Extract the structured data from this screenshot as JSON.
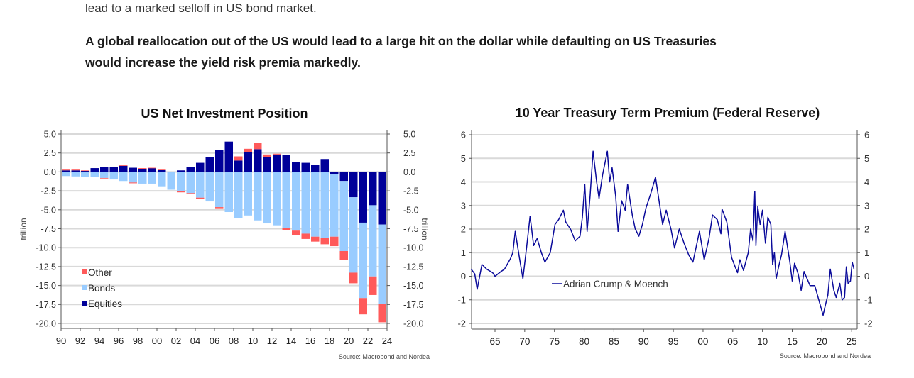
{
  "article": {
    "clipped_line": "lead to a marked selloff in US bond market.",
    "paragraph_lines": [
      "A global reallocation out of the US would lead to a large hit on the dollar while defaulting on US Treasuries",
      "would increase the yield risk premia markedly."
    ]
  },
  "chart_data": [
    {
      "type": "bar",
      "stacked": true,
      "title": "US Net Investment Position",
      "ylabel": "trillion",
      "ylabel_right": "trillion",
      "ylim": [
        -20,
        5
      ],
      "yticks": [
        "5.0",
        "2.5",
        "0.0",
        "-2.5",
        "-5.0",
        "-7.5",
        "-10.0",
        "-12.5",
        "-15.0",
        "-17.5",
        "-20.0"
      ],
      "xtick_labels": [
        "90",
        "92",
        "94",
        "96",
        "98",
        "00",
        "02",
        "04",
        "06",
        "08",
        "10",
        "12",
        "14",
        "16",
        "18",
        "20",
        "22",
        "24"
      ],
      "grid": true,
      "legend_position": "bottom-left",
      "source": "Source: Macrobond and Nordea",
      "categories": [
        1990,
        1991,
        1992,
        1993,
        1994,
        1995,
        1996,
        1997,
        1998,
        1999,
        2000,
        2001,
        2002,
        2003,
        2004,
        2005,
        2006,
        2007,
        2008,
        2009,
        2010,
        2011,
        2012,
        2013,
        2014,
        2015,
        2016,
        2017,
        2018,
        2019,
        2020,
        2021,
        2022,
        2023
      ],
      "series": [
        {
          "name": "Equities",
          "color": "#000099",
          "values": [
            0.2,
            0.2,
            0.15,
            0.5,
            0.6,
            0.6,
            0.8,
            0.55,
            0.4,
            0.5,
            0.25,
            0,
            0.2,
            0.6,
            1.2,
            1.95,
            2.9,
            4.0,
            1.5,
            2.6,
            3.0,
            2.0,
            2.3,
            2.2,
            1.3,
            1.2,
            0.9,
            1.7,
            -0.25,
            -1.2,
            -3.35,
            -6.7,
            -4.4,
            -6.95
          ]
        },
        {
          "name": "Bonds",
          "color": "#99ccff",
          "values": [
            -0.55,
            -0.6,
            -0.7,
            -0.7,
            -0.8,
            -1.0,
            -1.2,
            -1.4,
            -1.55,
            -1.55,
            -1.9,
            -2.35,
            -2.55,
            -2.8,
            -3.4,
            -3.9,
            -4.65,
            -5.3,
            -6.1,
            -5.75,
            -6.4,
            -6.8,
            -7.05,
            -7.4,
            -7.75,
            -8.15,
            -8.55,
            -8.7,
            -8.3,
            -9.25,
            -9.95,
            -9.95,
            -9.4,
            -10.5
          ]
        },
        {
          "name": "Other",
          "color": "#ff5a5a",
          "values": [
            0.1,
            0.1,
            0.05,
            0,
            -0.05,
            0,
            0.1,
            -0.1,
            0.1,
            0.05,
            0.05,
            0,
            -0.15,
            -0.15,
            -0.2,
            0,
            -0.15,
            0,
            0.55,
            0.45,
            0.8,
            0.3,
            0.1,
            -0.3,
            -0.55,
            -0.7,
            -0.65,
            -0.85,
            -1.25,
            -1.2,
            -1.4,
            -2.15,
            -2.45,
            -2.4
          ]
        }
      ],
      "legend_order": [
        "Other",
        "Bonds",
        "Equities"
      ]
    },
    {
      "type": "line",
      "title": "10 Year Treasury Term Premium (Federal Reserve)",
      "ylim": [
        -2,
        6
      ],
      "yticks": [
        "6",
        "5",
        "4",
        "3",
        "2",
        "1",
        "0",
        "-1",
        "-2"
      ],
      "xtick_labels": [
        "65",
        "70",
        "75",
        "80",
        "85",
        "90",
        "95",
        "00",
        "05",
        "10",
        "15",
        "20",
        "25"
      ],
      "grid": true,
      "legend_position": "center",
      "source": "Source: Macrobond and Nordea",
      "series": [
        {
          "name": "Adrian Crump & Moench",
          "color": "#0a0a9a",
          "x": [
            1961.0,
            1961.6,
            1962.0,
            1962.8,
            1963.6,
            1964.6,
            1965.0,
            1966.0,
            1966.6,
            1967.6,
            1968.0,
            1968.4,
            1969.1,
            1969.7,
            1970.3,
            1970.9,
            1971.5,
            1972.1,
            1972.8,
            1973.4,
            1974.3,
            1975.1,
            1975.7,
            1976.5,
            1976.9,
            1977.7,
            1978.5,
            1979.3,
            1979.7,
            1980.1,
            1980.5,
            1981.0,
            1981.5,
            1982.1,
            1982.5,
            1983.1,
            1983.9,
            1984.3,
            1984.7,
            1985.3,
            1985.7,
            1986.3,
            1986.9,
            1987.3,
            1988.1,
            1988.6,
            1989.2,
            1989.8,
            1990.4,
            1991.2,
            1992.0,
            1992.6,
            1993.2,
            1993.8,
            1994.6,
            1995.2,
            1996.0,
            1996.8,
            1997.6,
            1998.3,
            1999.4,
            2000.2,
            2001.0,
            2001.6,
            2002.4,
            2003.0,
            2003.2,
            2004.0,
            2004.8,
            2005.4,
            2005.8,
            2006.2,
            2006.8,
            2007.6,
            2008.0,
            2008.4,
            2008.7,
            2008.9,
            2009.2,
            2009.6,
            2010.0,
            2010.5,
            2010.9,
            2011.4,
            2011.7,
            2012.0,
            2012.3,
            2012.8,
            2013.2,
            2013.8,
            2014.6,
            2015.0,
            2015.4,
            2016.0,
            2016.5,
            2017.0,
            2018.0,
            2018.8,
            2019.8,
            2020.2,
            2020.6,
            2021.0,
            2021.4,
            2022.0,
            2022.4,
            2023.0,
            2023.4,
            2023.8,
            2024.1,
            2024.4,
            2024.8,
            2025.1,
            2025.4
          ],
          "y": [
            0.3,
            0.1,
            -0.55,
            0.5,
            0.3,
            0.15,
            0.0,
            0.2,
            0.3,
            0.75,
            1.0,
            1.9,
            0.8,
            -0.1,
            1.2,
            2.55,
            1.3,
            1.6,
            1.0,
            0.6,
            1.0,
            2.2,
            2.4,
            2.8,
            2.3,
            2.0,
            1.5,
            1.7,
            2.5,
            3.9,
            1.9,
            3.4,
            5.3,
            4.0,
            3.3,
            4.3,
            5.3,
            4.0,
            4.6,
            3.4,
            1.9,
            3.2,
            2.8,
            3.9,
            2.6,
            2.0,
            1.7,
            2.2,
            2.9,
            3.5,
            4.2,
            3.2,
            2.2,
            2.8,
            2.0,
            1.2,
            2.0,
            1.4,
            0.9,
            0.6,
            1.9,
            0.7,
            1.6,
            2.6,
            2.4,
            1.8,
            2.85,
            2.3,
            0.8,
            0.4,
            0.15,
            0.7,
            0.25,
            1.0,
            2.0,
            1.5,
            3.6,
            1.3,
            2.95,
            2.2,
            2.8,
            1.4,
            2.5,
            2.2,
            0.5,
            1.0,
            -0.1,
            0.5,
            0.9,
            1.9,
            0.6,
            -0.2,
            0.55,
            0.1,
            -0.6,
            0.2,
            -0.4,
            -0.4,
            -1.3,
            -1.65,
            -1.2,
            -0.8,
            0.3,
            -0.6,
            -0.9,
            -0.3,
            -1.0,
            -0.9,
            0.4,
            -0.3,
            -0.2,
            0.6,
            0.3
          ]
        }
      ]
    }
  ]
}
